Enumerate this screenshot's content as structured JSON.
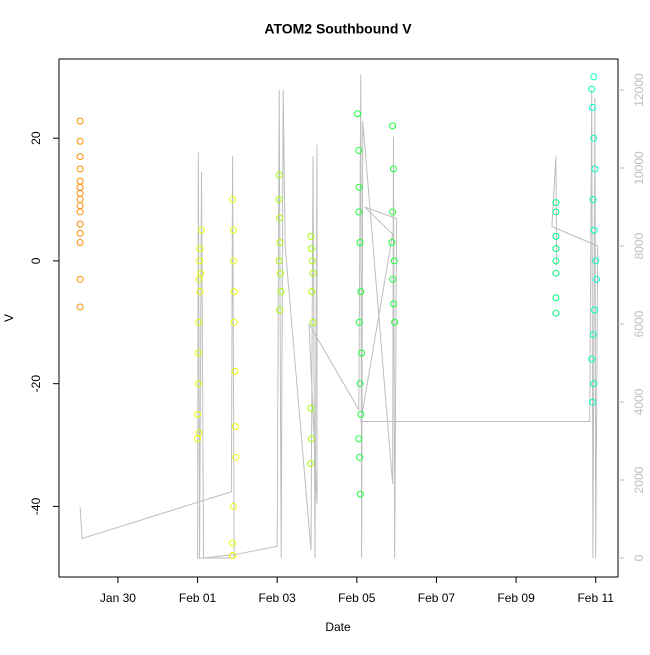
{
  "chart_data": {
    "type": "scatter",
    "title": "ATOM2 Southbound V",
    "x_label": "Date",
    "y_label": "V",
    "xlim": [
      28.52,
      42.56
    ],
    "ylim": [
      -51.5,
      32.9
    ],
    "y2lim": [
      -487,
      12795
    ],
    "xticks": [
      {
        "value": 30,
        "label": "Jan 30"
      },
      {
        "value": 32,
        "label": "Feb 01"
      },
      {
        "value": 34,
        "label": "Feb 03"
      },
      {
        "value": 36,
        "label": "Feb 05"
      },
      {
        "value": 38,
        "label": "Feb 07"
      },
      {
        "value": 40,
        "label": "Feb 09"
      },
      {
        "value": 42,
        "label": "Feb 11"
      }
    ],
    "yticks": [
      -40,
      -20,
      0,
      20
    ],
    "y2ticks": [
      0,
      2000,
      4000,
      6000,
      8000,
      10000,
      12000
    ],
    "series": [
      {
        "color": "#ff8c00",
        "x": [
          29.05,
          29.05,
          29.05,
          29.05,
          29.05,
          29.05,
          29.05,
          29.05,
          29.05,
          29.05,
          29.05,
          29.05,
          29.05,
          29.05,
          29.05
        ],
        "values": [
          22.8,
          19.5,
          17,
          15,
          13,
          12,
          11,
          10,
          9,
          8,
          6,
          4.5,
          3,
          -3,
          -7.5
        ]
      },
      {
        "color": "#eaff00",
        "x": [
          32.0,
          32.0,
          32.02,
          32.03,
          32.04,
          32.05,
          32.06,
          32.08,
          32.1,
          32.02,
          32.04,
          32.06,
          32.88,
          32.9,
          32.9,
          32.92,
          32.92,
          32.94,
          32.95,
          32.96,
          32.9,
          32.88,
          32.88
        ],
        "values": [
          -29,
          -25,
          -15,
          -10,
          -3,
          0,
          2,
          -2,
          5,
          -20,
          -28,
          -5,
          10,
          5,
          0,
          -5,
          -10,
          -18,
          -27,
          -32,
          -40,
          -46,
          -48
        ]
      },
      {
        "color": "#a6ff00",
        "x": [
          34.05,
          34.05,
          34.06,
          34.07,
          34.05,
          34.08,
          34.1,
          34.06,
          34.85,
          34.86,
          34.88,
          34.9,
          34.87,
          34.9,
          34.85,
          34.86,
          34.84
        ],
        "values": [
          14,
          10,
          7,
          3,
          0,
          -2,
          -5,
          -8,
          4,
          2,
          0,
          -2,
          -5,
          -10,
          -24,
          -29,
          -33
        ]
      },
      {
        "color": "#1aff3c",
        "x": [
          36.02,
          36.05,
          36.06,
          36.05,
          36.08,
          36.1,
          36.06,
          36.12,
          36.08,
          36.1,
          36.05,
          36.07,
          36.09,
          36.9,
          36.92,
          36.9,
          36.88,
          36.94,
          36.9,
          36.92,
          36.95
        ],
        "values": [
          24,
          18,
          12,
          8,
          3,
          -5,
          -10,
          -15,
          -20,
          -25,
          -29,
          -32,
          -38,
          22,
          15,
          8,
          3,
          0,
          -3,
          -7,
          -10
        ]
      },
      {
        "color": "#00ff80",
        "x": [
          41.0,
          41.0,
          41.0,
          41.0,
          41.0,
          41.0,
          41.0,
          41.0
        ],
        "values": [
          9.5,
          8,
          4,
          2,
          0,
          -2,
          -6,
          -8.5
        ]
      },
      {
        "color": "#00ffc0",
        "x": [
          41.95,
          41.9,
          41.92,
          41.95,
          41.98,
          41.93,
          41.96,
          42.0,
          42.02,
          41.97,
          41.94,
          41.9,
          41.95,
          41.92
        ],
        "values": [
          30,
          28,
          25,
          20,
          15,
          10,
          5,
          0,
          -3,
          -8,
          -12,
          -16,
          -20,
          -23
        ]
      },
      {
        "axis": "y2",
        "color": "#bebebe",
        "x": [
          29.05,
          29.1,
          32.85,
          32.88,
          32.92,
          32.0,
          32.02,
          32.05,
          32.1,
          32.15,
          33.0,
          34.0,
          34.05,
          34.1,
          34.15,
          34.2,
          34.85,
          34.9,
          34.95,
          35.0,
          35.0,
          34.8,
          36.05,
          36.1,
          36.12,
          36.15,
          36.9,
          36.92,
          36.95,
          37.0,
          36.2,
          36.9,
          36.1,
          41.85,
          41.9,
          41.93,
          41.98,
          42.0,
          42.05,
          40.9,
          41.0,
          41.02
        ],
        "values": [
          1300,
          500,
          1700,
          10300,
          0,
          0,
          10400,
          0,
          9900,
          0,
          100,
          300,
          12000,
          0,
          12000,
          8000,
          200,
          10300,
          0,
          10600,
          1400,
          6000,
          3800,
          12400,
          0,
          11200,
          1900,
          10800,
          0,
          8700,
          9000,
          8300,
          3500,
          3500,
          12000,
          0,
          11800,
          0,
          8000,
          8500,
          10300,
          7500
        ]
      }
    ]
  }
}
